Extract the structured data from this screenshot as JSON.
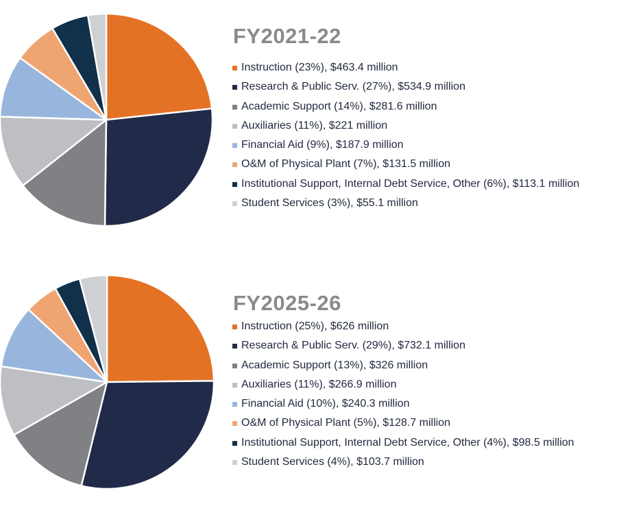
{
  "chart_data": [
    {
      "type": "pie",
      "title": "FY2021-22",
      "slices": [
        {
          "label": "Instruction (23%), $463.4 million",
          "value": 463.4,
          "color": "#e37225"
        },
        {
          "label": "Research & Public Serv. (27%), $534.9 million",
          "value": 534.9,
          "color": "#222a49"
        },
        {
          "label": "Academic Support (14%), $281.6 million",
          "value": 281.6,
          "color": "#808184"
        },
        {
          "label": "Auxiliaries (11%), $221 million",
          "value": 221,
          "color": "#bebfc2"
        },
        {
          "label": "Financial Aid (9%), $187.9 million",
          "value": 187.9,
          "color": "#98b6dd"
        },
        {
          "label": "O&M of Physical Plant (7%), $131.5 million",
          "value": 131.5,
          "color": "#efa571"
        },
        {
          "label": "Institutional Support, Internal Debt Service, Other (6%), $113.1 million",
          "value": 113.1,
          "color": "#11304a"
        },
        {
          "label": "Student Services (3%), $55.1 million",
          "value": 55.1,
          "color": "#cfd0d3"
        }
      ]
    },
    {
      "type": "pie",
      "title": "FY2025-26",
      "slices": [
        {
          "label": "Instruction (25%), $626 million",
          "value": 626,
          "color": "#e37225"
        },
        {
          "label": "Research & Public Serv. (29%), $732.1 million",
          "value": 732.1,
          "color": "#222a49"
        },
        {
          "label": "Academic Support (13%), $326 million",
          "value": 326,
          "color": "#808184"
        },
        {
          "label": "Auxiliaries (11%), $266.9 million",
          "value": 266.9,
          "color": "#bebfc2"
        },
        {
          "label": "Financial Aid (10%), $240.3 million",
          "value": 240.3,
          "color": "#98b6dd"
        },
        {
          "label": "O&M of Physical Plant (5%), $128.7 million",
          "value": 128.7,
          "color": "#efa571"
        },
        {
          "label": "Institutional Support, Internal Debt Service, Other (4%), $98.5 million",
          "value": 98.5,
          "color": "#11304a"
        },
        {
          "label": "Student Services (4%), $103.7 million",
          "value": 103.7,
          "color": "#cfd0d3"
        }
      ]
    }
  ]
}
